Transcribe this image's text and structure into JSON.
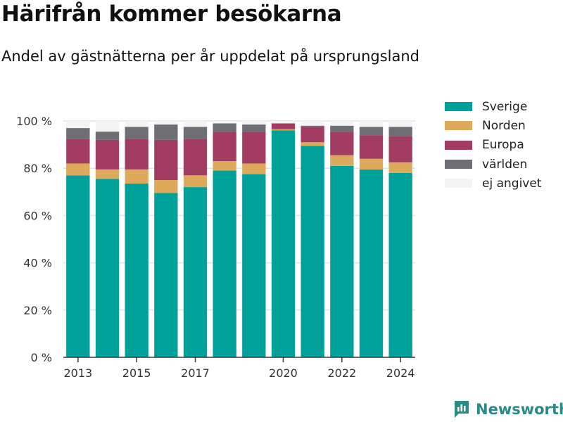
{
  "header": {
    "title": "Härifrån kommer besökarna",
    "subtitle": "Andel av gästnätterna per år uppdelat på ursprungsland"
  },
  "chart_data": {
    "type": "bar",
    "stacked": true,
    "categories": [
      2013,
      2014,
      2015,
      2016,
      2017,
      2018,
      2019,
      2020,
      2021,
      2022,
      2023,
      2024
    ],
    "x_tick_labels": [
      "2013",
      "2015",
      "2017",
      "2020",
      "2022",
      "2024"
    ],
    "y_ticks": [
      0,
      20,
      40,
      60,
      80,
      100
    ],
    "y_tick_suffix": " %",
    "ylim": [
      0,
      100
    ],
    "grid": true,
    "legend_position": "top-right",
    "series": [
      {
        "name": "Sverige",
        "color": "#00a19a",
        "values": [
          77,
          75.5,
          73.5,
          69.5,
          72,
          79,
          77.5,
          96,
          89.5,
          81,
          79.5,
          78
        ]
      },
      {
        "name": "Norden",
        "color": "#dcaa5a",
        "values": [
          5,
          4,
          6,
          5.5,
          5,
          4,
          4.5,
          0.5,
          1.5,
          4.5,
          4.5,
          4.5
        ]
      },
      {
        "name": "Europa",
        "color": "#a33c62",
        "values": [
          10.5,
          12.5,
          13,
          17,
          15.5,
          12.5,
          13.5,
          2.5,
          6.5,
          10,
          10,
          11
        ]
      },
      {
        "name": "världen",
        "color": "#6e6e75",
        "values": [
          4.5,
          3.5,
          5,
          6.5,
          5,
          3.5,
          3,
          0,
          0.5,
          2.5,
          3.5,
          4
        ]
      },
      {
        "name": "ej angivet",
        "color": "#f4f4f4",
        "values": [
          3,
          4.5,
          2.5,
          1.5,
          2.5,
          1,
          1.5,
          1,
          2,
          2,
          2.5,
          2.5
        ]
      }
    ]
  },
  "brand": {
    "name": "Newsworthy",
    "icon": "newsworthy-logo-icon",
    "color": "#2a8a86"
  }
}
